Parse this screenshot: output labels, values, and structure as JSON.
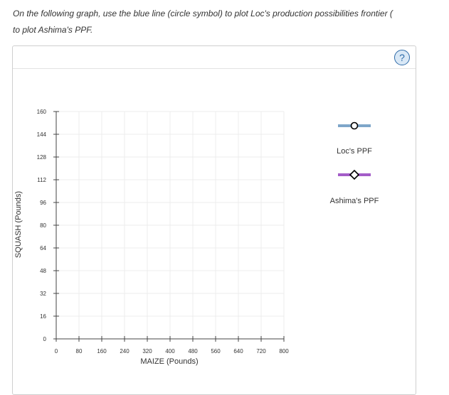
{
  "instructions": {
    "line1": "On the following graph, use the blue line (circle symbol) to plot Loc's production possibilities frontier (",
    "line2": "to plot Ashima's PPF."
  },
  "help": {
    "label": "?"
  },
  "chart_data": {
    "type": "line",
    "xlabel": "MAIZE (Pounds)",
    "ylabel": "SQUASH (Pounds)",
    "xlim": [
      0,
      800
    ],
    "ylim": [
      0,
      160
    ],
    "xticks": [
      0,
      80,
      160,
      240,
      320,
      400,
      480,
      560,
      640,
      720,
      800
    ],
    "yticks": [
      0,
      16,
      32,
      48,
      64,
      80,
      96,
      112,
      128,
      144,
      160
    ],
    "grid": true,
    "series": [
      {
        "name": "Loc's PPF",
        "color": "#7ea6c9",
        "marker": "circle",
        "points": []
      },
      {
        "name": "Ashima's PPF",
        "color": "#a45dc8",
        "marker": "diamond",
        "points": []
      }
    ]
  },
  "legend": {
    "items": [
      {
        "label": "Loc's PPF",
        "color": "#7ea6c9",
        "marker": "circle",
        "icon": "circle-marker-icon"
      },
      {
        "label": "Ashima's PPF",
        "color": "#a45dc8",
        "marker": "diamond",
        "icon": "diamond-marker-icon"
      }
    ]
  }
}
